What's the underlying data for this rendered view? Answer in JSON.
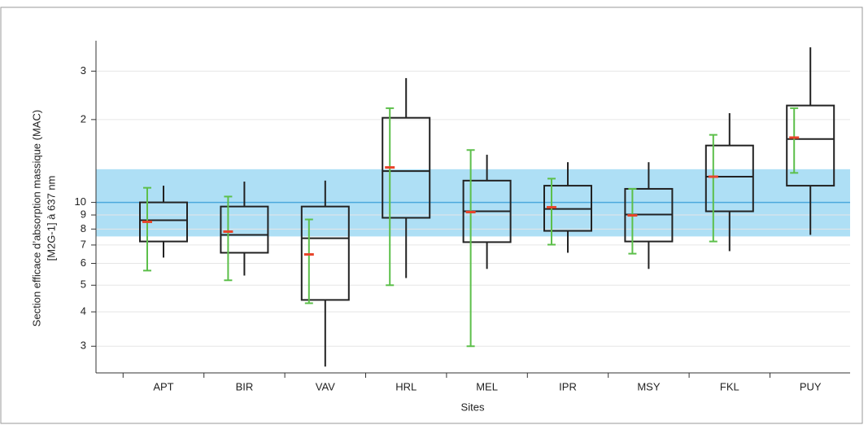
{
  "chart_data": {
    "type": "box",
    "ylabel": [
      "Section efficace d’absorption massique (MAC)",
      "[M2G-1] à 637 nm"
    ],
    "xlabel": "Sites",
    "categories": [
      "APT",
      "BIR",
      "VAV",
      "HRL",
      "MEL",
      "IPR",
      "MSY",
      "FKL",
      "PUY"
    ],
    "log_scale": true,
    "ylim": [
      2.4,
      38.7
    ],
    "yticks": [
      {
        "value": 30,
        "label": "3"
      },
      {
        "value": 20,
        "label": "2"
      },
      10,
      9,
      8,
      7,
      6,
      5,
      4,
      3
    ],
    "grid": true,
    "band": [
      7.52,
      13.2
    ],
    "band_color": "#aedff5",
    "reference_line": 10,
    "reference_color": "#4aa8dc",
    "box_color": "#222222",
    "error_color": "#5cbf4a",
    "mean_color": "#e8442a",
    "boxes": [
      {
        "whislo": 6.3,
        "q1": 7.21,
        "med": 8.61,
        "q3": 10,
        "whishi": 11.5,
        "mean": 8.5,
        "err_lo": 5.65,
        "err_hi": 11.3
      },
      {
        "whislo": 5.42,
        "q1": 6.56,
        "med": 7.62,
        "q3": 9.66,
        "whishi": 11.9,
        "mean": 7.83,
        "err_lo": 5.21,
        "err_hi": 10.5
      },
      {
        "whislo": 2.53,
        "q1": 4.42,
        "med": 7.41,
        "q3": 9.66,
        "whishi": 12.0,
        "mean": 6.47,
        "err_lo": 4.3,
        "err_hi": 8.67
      },
      {
        "whislo": 5.31,
        "q1": 8.79,
        "med": 13.0,
        "q3": 20.3,
        "whishi": 28.3,
        "mean": 13.4,
        "err_lo": 5.0,
        "err_hi": 22.0
      },
      {
        "whislo": 5.73,
        "q1": 7.17,
        "med": 9.28,
        "q3": 12.0,
        "whishi": 14.9,
        "mean": 9.22,
        "err_lo": 3.0,
        "err_hi": 15.5
      },
      {
        "whislo": 6.56,
        "q1": 7.88,
        "med": 9.47,
        "q3": 11.5,
        "whishi": 14.0,
        "mean": 9.6,
        "err_lo": 7.02,
        "err_hi": 12.2
      },
      {
        "whislo": 5.73,
        "q1": 7.21,
        "med": 9.03,
        "q3": 11.2,
        "whishi": 14.0,
        "mean": 8.97,
        "err_lo": 6.51,
        "err_hi": 11.2
      },
      {
        "whislo": 6.65,
        "q1": 9.28,
        "med": 12.4,
        "q3": 16.1,
        "whishi": 21.1,
        "mean": 12.4,
        "err_lo": 7.21,
        "err_hi": 17.6
      },
      {
        "whislo": 7.62,
        "q1": 11.5,
        "med": 17.0,
        "q3": 22.5,
        "whishi": 36.6,
        "mean": 17.2,
        "err_lo": 12.8,
        "err_hi": 22.0
      }
    ]
  }
}
